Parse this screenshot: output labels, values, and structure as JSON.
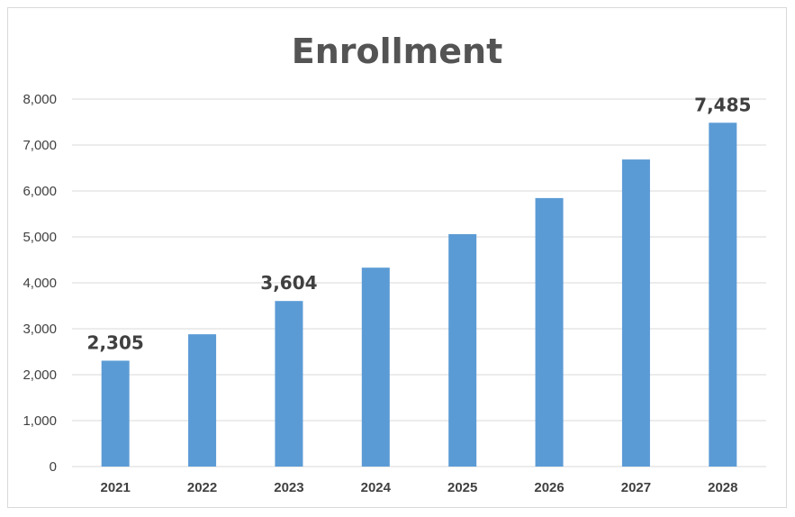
{
  "chart_data": {
    "type": "bar",
    "title": "Enrollment",
    "xlabel": "",
    "ylabel": "",
    "categories": [
      "2021",
      "2022",
      "2023",
      "2024",
      "2025",
      "2026",
      "2027",
      "2028"
    ],
    "values": [
      2305,
      2880,
      3604,
      4330,
      5060,
      5845,
      6685,
      7485
    ],
    "data_labels": {
      "0": "2,305",
      "2": "3,604",
      "7": "7,485"
    },
    "ylim": [
      0,
      8000
    ],
    "yticks": [
      0,
      1000,
      2000,
      3000,
      4000,
      5000,
      6000,
      7000,
      8000
    ],
    "ytick_labels": [
      "0",
      "1,000",
      "2,000",
      "3,000",
      "4,000",
      "5,000",
      "6,000",
      "7,000",
      "8,000"
    ],
    "grid": true,
    "legend": "none",
    "colors": {
      "bar": "#5b9bd5",
      "grid": "#d9d9d9",
      "title": "#545454",
      "text": "#404040"
    }
  }
}
